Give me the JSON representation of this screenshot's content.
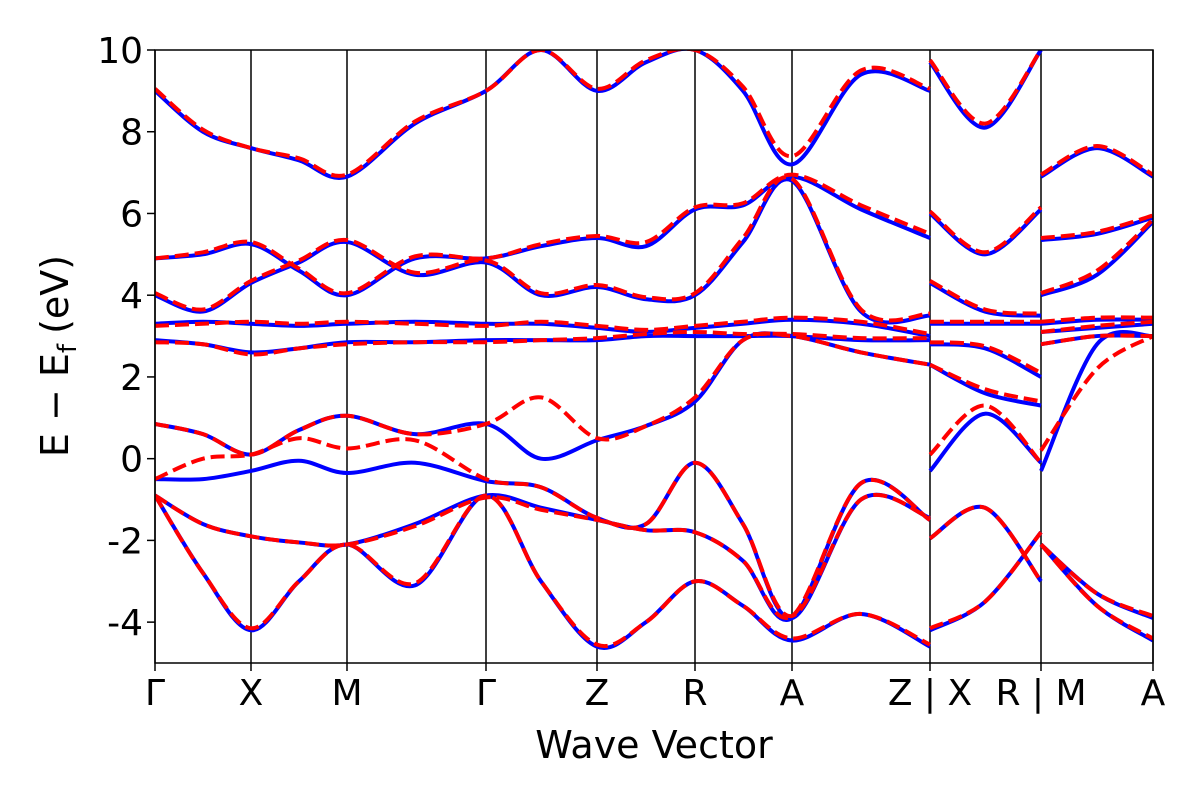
{
  "chart_data": {
    "type": "line",
    "xlabel": "Wave Vector",
    "ylabel": {
      "main": "E − E",
      "sub": "f",
      "unit": "(eV)"
    },
    "xlim": [
      0,
      9.98
    ],
    "ylim": [
      -5,
      10
    ],
    "xticks": [
      {
        "value": 0,
        "label": "Γ"
      },
      {
        "value": 0.96,
        "label": "X"
      },
      {
        "value": 1.92,
        "label": "M"
      },
      {
        "value": 3.31,
        "label": "Γ"
      },
      {
        "value": 4.42,
        "label": "Z"
      },
      {
        "value": 5.4,
        "label": "R"
      },
      {
        "value": 6.37,
        "label": "A"
      },
      {
        "value": 7.75,
        "label": "Z | X"
      },
      {
        "value": 8.86,
        "label": "R | M"
      },
      {
        "value": 9.98,
        "label": "A"
      }
    ],
    "yticks": [
      -4,
      -2,
      0,
      2,
      4,
      6,
      8,
      10
    ],
    "xgrid": true,
    "x": [
      0,
      0.48,
      0.96,
      1.44,
      1.92,
      2.6,
      3.31,
      3.86,
      4.42,
      4.91,
      5.4,
      5.88,
      6.37,
      7.06,
      7.75,
      null,
      7.75,
      8.3,
      8.86,
      null,
      8.86,
      9.42,
      9.98
    ],
    "series": [
      {
        "color": "#0000ff",
        "linestyle": "solid",
        "values": [
          -0.9,
          -2.8,
          -4.2,
          -3.0,
          -2.1,
          -3.1,
          -0.9,
          -3.0,
          -4.6,
          -4.0,
          -3.0,
          -3.6,
          -4.45,
          -3.8,
          -4.6,
          null,
          -4.2,
          -3.5,
          -1.8,
          null,
          -2.1,
          -3.6,
          -4.45
        ]
      },
      {
        "color": "#0000ff",
        "linestyle": "solid",
        "values": [
          -0.9,
          -1.6,
          -1.9,
          -2.05,
          -2.1,
          -1.6,
          -0.9,
          -1.2,
          -1.5,
          -1.75,
          -1.8,
          -2.5,
          -3.9,
          -0.6,
          -1.5,
          null,
          -1.95,
          -1.2,
          -3.0,
          null,
          -2.1,
          -3.3,
          -3.9
        ]
      },
      {
        "color": "#0000ff",
        "linestyle": "solid",
        "values": [
          -0.5,
          -0.5,
          -0.3,
          -0.05,
          -0.35,
          -0.1,
          -0.55,
          -0.7,
          -1.45,
          -1.6,
          -0.1,
          -1.6,
          -3.9,
          -1.0,
          -1.45,
          null,
          -0.3,
          1.1,
          -0.1,
          null,
          -0.3,
          2.8,
          3.0
        ]
      },
      {
        "color": "#0000ff",
        "linestyle": "solid",
        "values": [
          0.85,
          0.6,
          0.1,
          0.7,
          1.05,
          0.6,
          0.85,
          0.0,
          0.45,
          0.8,
          1.4,
          2.9,
          3.0,
          2.6,
          2.3,
          null,
          2.3,
          1.6,
          1.3,
          null,
          2.8,
          3.0,
          3.0
        ]
      },
      {
        "color": "#0000ff",
        "linestyle": "solid",
        "values": [
          2.9,
          2.8,
          2.6,
          2.7,
          2.85,
          2.85,
          2.9,
          2.9,
          2.9,
          3.0,
          3.0,
          3.0,
          3.0,
          2.9,
          2.9,
          null,
          2.8,
          2.7,
          2.0,
          null,
          3.1,
          3.2,
          3.3
        ]
      },
      {
        "color": "#0000ff",
        "linestyle": "solid",
        "values": [
          3.3,
          3.35,
          3.3,
          3.25,
          3.3,
          3.35,
          3.3,
          3.3,
          3.2,
          3.1,
          3.2,
          3.3,
          3.4,
          3.3,
          3.0,
          null,
          3.3,
          3.3,
          3.3,
          null,
          3.3,
          3.4,
          3.4
        ]
      },
      {
        "color": "#0000ff",
        "linestyle": "solid",
        "values": [
          4.0,
          3.6,
          4.3,
          4.8,
          5.3,
          4.5,
          4.8,
          4.0,
          4.2,
          3.9,
          4.0,
          5.3,
          6.8,
          3.6,
          3.5,
          null,
          4.3,
          3.6,
          3.5,
          null,
          4.0,
          4.5,
          5.8
        ]
      },
      {
        "color": "#0000ff",
        "linestyle": "solid",
        "values": [
          4.9,
          5.0,
          5.25,
          4.6,
          4.0,
          4.9,
          4.9,
          5.2,
          5.4,
          5.2,
          6.1,
          6.2,
          6.9,
          6.1,
          5.4,
          null,
          6.0,
          5.0,
          6.1,
          null,
          5.35,
          5.5,
          5.9
        ]
      },
      {
        "color": "#0000ff",
        "linestyle": "solid",
        "values": [
          9.0,
          8.0,
          7.6,
          7.3,
          6.9,
          8.2,
          9.0,
          10.0,
          9.0,
          9.7,
          10.0,
          9.0,
          7.2,
          9.4,
          9.0,
          null,
          9.7,
          8.1,
          10.0,
          null,
          6.9,
          7.6,
          6.9
        ]
      },
      {
        "color": "#ff0000",
        "linestyle": "dashed",
        "values": [
          -0.9,
          -2.8,
          -4.15,
          -3.0,
          -2.1,
          -3.05,
          -0.9,
          -3.0,
          -4.55,
          -4.0,
          -3.0,
          -3.6,
          -4.4,
          -3.8,
          -4.55,
          null,
          -4.15,
          -3.5,
          -1.8,
          null,
          -2.1,
          -3.6,
          -4.4
        ]
      },
      {
        "color": "#ff0000",
        "linestyle": "dashed",
        "values": [
          -0.9,
          -1.6,
          -1.9,
          -2.05,
          -2.1,
          -1.65,
          -0.95,
          -1.25,
          -1.5,
          -1.75,
          -1.8,
          -2.5,
          -3.85,
          -0.6,
          -1.5,
          null,
          -1.95,
          -1.2,
          -3.0,
          null,
          -2.1,
          -3.3,
          -3.85
        ]
      },
      {
        "color": "#ff0000",
        "linestyle": "dashed",
        "values": [
          -0.5,
          0.0,
          0.1,
          0.5,
          0.25,
          0.45,
          -0.5,
          -0.7,
          -1.45,
          -1.6,
          -0.1,
          -1.6,
          -3.85,
          -1.0,
          -1.45,
          null,
          0.1,
          1.3,
          -0.1,
          null,
          0.2,
          2.2,
          3.0
        ]
      },
      {
        "color": "#ff0000",
        "linestyle": "dashed",
        "values": [
          0.85,
          0.6,
          0.1,
          0.7,
          1.05,
          0.6,
          0.85,
          1.5,
          0.5,
          0.8,
          1.5,
          2.9,
          3.0,
          2.6,
          2.3,
          null,
          2.3,
          1.7,
          1.4,
          null,
          2.8,
          3.0,
          3.0
        ]
      },
      {
        "color": "#ff0000",
        "linestyle": "dashed",
        "values": [
          2.85,
          2.8,
          2.55,
          2.7,
          2.8,
          2.85,
          2.85,
          2.9,
          2.95,
          3.05,
          3.1,
          3.05,
          3.05,
          2.95,
          2.95,
          null,
          2.85,
          2.75,
          2.1,
          null,
          3.1,
          3.25,
          3.35
        ]
      },
      {
        "color": "#ff0000",
        "linestyle": "dashed",
        "values": [
          3.25,
          3.3,
          3.35,
          3.3,
          3.35,
          3.3,
          3.25,
          3.35,
          3.25,
          3.15,
          3.25,
          3.35,
          3.45,
          3.35,
          3.05,
          null,
          3.35,
          3.35,
          3.35,
          null,
          3.35,
          3.45,
          3.45
        ]
      },
      {
        "color": "#ff0000",
        "linestyle": "dashed",
        "values": [
          4.05,
          3.65,
          4.35,
          4.85,
          5.35,
          4.55,
          4.85,
          4.05,
          4.25,
          3.95,
          4.05,
          5.4,
          6.85,
          3.65,
          3.55,
          null,
          4.35,
          3.65,
          3.55,
          null,
          4.05,
          4.6,
          5.85
        ]
      },
      {
        "color": "#ff0000",
        "linestyle": "dashed",
        "values": [
          4.9,
          5.05,
          5.3,
          4.65,
          4.05,
          4.95,
          4.9,
          5.25,
          5.45,
          5.3,
          6.15,
          6.25,
          6.95,
          6.2,
          5.5,
          null,
          6.05,
          5.05,
          6.15,
          null,
          5.4,
          5.55,
          5.95
        ]
      },
      {
        "color": "#ff0000",
        "linestyle": "dashed",
        "values": [
          9.05,
          8.05,
          7.6,
          7.35,
          6.95,
          8.25,
          9.0,
          10.0,
          9.05,
          9.75,
          10.0,
          9.1,
          7.4,
          9.5,
          9.05,
          null,
          9.75,
          8.2,
          10.0,
          null,
          6.95,
          7.65,
          6.95
        ]
      }
    ]
  }
}
